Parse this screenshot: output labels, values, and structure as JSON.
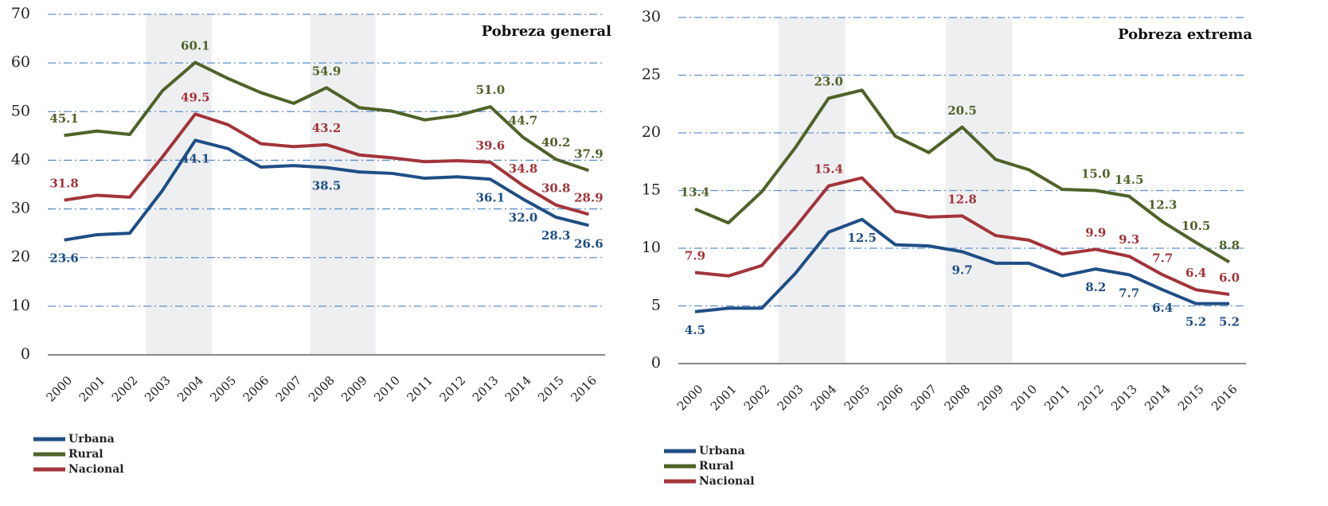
{
  "chart_data": [
    {
      "type": "line",
      "title": "Pobreza general",
      "categories": [
        "2000",
        "2001",
        "2002",
        "2003",
        "2004",
        "2005",
        "2006",
        "2007",
        "2008",
        "2009",
        "2010",
        "2011",
        "2012",
        "2013",
        "2014",
        "2015",
        "2016"
      ],
      "ylim": [
        0,
        70
      ],
      "yticks": [
        0,
        10,
        20,
        30,
        40,
        50,
        60,
        70
      ],
      "grid": true,
      "shaded": [
        [
          3,
          4
        ],
        [
          8,
          9
        ]
      ],
      "legend": "bottom-left",
      "series": [
        {
          "name": "Urbana",
          "color": "#1f4e85",
          "values": [
            23.6,
            24.7,
            25.0,
            33.8,
            44.1,
            42.4,
            38.6,
            38.9,
            38.5,
            37.6,
            37.3,
            36.3,
            36.6,
            36.1,
            32.0,
            28.3,
            26.6
          ],
          "value_labels": [
            "23.6",
            null,
            null,
            null,
            "44.1",
            null,
            null,
            null,
            "38.5",
            null,
            null,
            null,
            null,
            "36.1",
            "32.0",
            "28.3",
            "26.6"
          ]
        },
        {
          "name": "Rural",
          "color": "#4f6228",
          "values": [
            45.1,
            46.0,
            45.3,
            54.3,
            60.1,
            56.8,
            53.9,
            51.7,
            54.9,
            50.8,
            50.1,
            48.3,
            49.2,
            51.0,
            44.7,
            40.2,
            37.9
          ],
          "value_labels": [
            "45.1",
            null,
            null,
            null,
            "60.1",
            null,
            null,
            null,
            "54.9",
            null,
            null,
            null,
            null,
            "51.0",
            "44.7",
            "40.2",
            "37.9"
          ]
        },
        {
          "name": "Nacional",
          "color": "#a3343a",
          "values": [
            31.8,
            32.8,
            32.4,
            40.7,
            49.5,
            47.3,
            43.4,
            42.8,
            43.2,
            41.1,
            40.5,
            39.7,
            39.9,
            39.6,
            34.8,
            30.8,
            28.9
          ],
          "value_labels": [
            "31.8",
            null,
            null,
            null,
            "49.5",
            null,
            null,
            null,
            "43.2",
            null,
            null,
            null,
            null,
            "39.6",
            "34.8",
            "30.8",
            "28.9"
          ]
        }
      ]
    },
    {
      "type": "line",
      "title": "Pobreza extrema",
      "categories": [
        "2000",
        "2001",
        "2002",
        "2003",
        "2004",
        "2005",
        "2006",
        "2007",
        "2008",
        "2009",
        "2010",
        "2011",
        "2012",
        "2013",
        "2014",
        "2015",
        "2016"
      ],
      "ylim": [
        0,
        30
      ],
      "yticks": [
        0,
        5,
        10,
        15,
        20,
        25,
        30
      ],
      "grid": true,
      "shaded": [
        [
          3,
          4
        ],
        [
          8,
          9
        ]
      ],
      "legend": "bottom-left",
      "series": [
        {
          "name": "Urbana",
          "color": "#1f4e85",
          "values": [
            4.5,
            4.8,
            4.8,
            7.8,
            11.4,
            12.5,
            10.3,
            10.2,
            9.7,
            8.7,
            8.7,
            7.6,
            8.2,
            7.7,
            6.4,
            5.2,
            5.2
          ],
          "value_labels": [
            "4.5",
            null,
            null,
            null,
            null,
            "12.5",
            null,
            null,
            "9.7",
            null,
            null,
            null,
            "8.2",
            "7.7",
            "6.4",
            "5.2",
            "5.2"
          ]
        },
        {
          "name": "Rural",
          "color": "#4f6228",
          "values": [
            13.4,
            12.2,
            14.9,
            18.7,
            23.0,
            23.7,
            19.7,
            18.3,
            20.5,
            17.7,
            16.8,
            15.1,
            15.0,
            14.5,
            12.3,
            10.5,
            8.8
          ],
          "value_labels": [
            "13.4",
            null,
            null,
            null,
            "23.0",
            null,
            null,
            null,
            "20.5",
            null,
            null,
            null,
            "15.0",
            "14.5",
            "12.3",
            "10.5",
            "8.8"
          ]
        },
        {
          "name": "Nacional",
          "color": "#a3343a",
          "values": [
            7.9,
            7.6,
            8.5,
            11.8,
            15.4,
            16.1,
            13.2,
            12.7,
            12.8,
            11.1,
            10.7,
            9.5,
            9.9,
            9.3,
            7.7,
            6.4,
            6.0
          ],
          "value_labels": [
            "7.9",
            null,
            null,
            null,
            "15.4",
            null,
            null,
            null,
            "12.8",
            null,
            null,
            null,
            "9.9",
            "9.3",
            "7.7",
            "6.4",
            "6.0"
          ]
        }
      ]
    }
  ]
}
